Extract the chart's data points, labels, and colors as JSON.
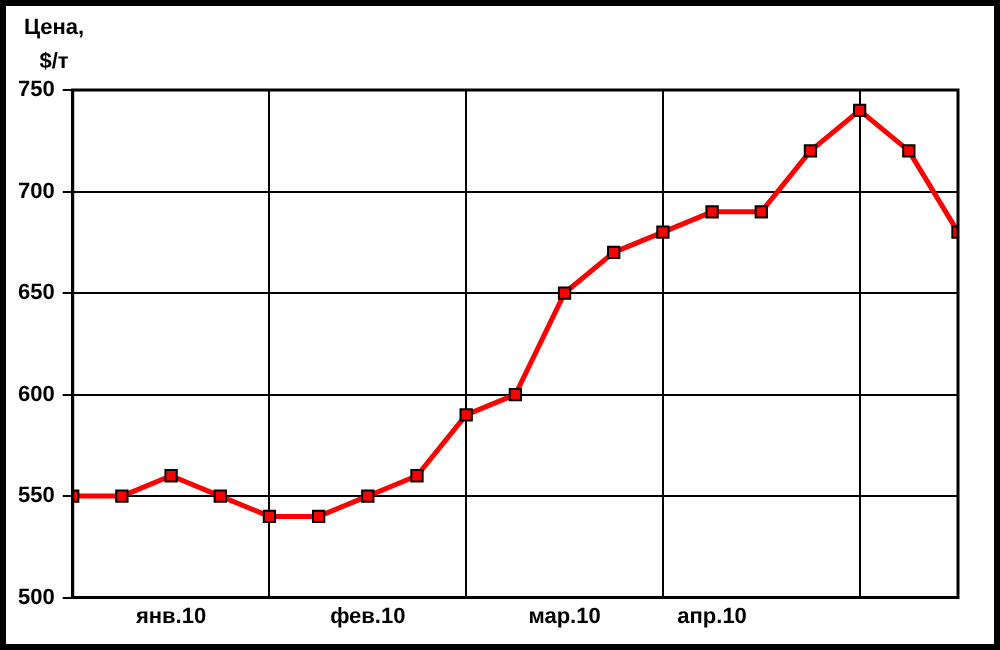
{
  "chart_data": {
    "type": "line",
    "ylabel": "Цена, $/т",
    "categories": [
      null,
      null,
      "янв.10",
      null,
      null,
      null,
      "фев.10",
      null,
      null,
      null,
      "мар.10",
      null,
      null,
      "апр.10",
      null,
      null,
      null,
      null,
      null
    ],
    "series": [
      {
        "color": "#ff0000",
        "values": [
          550,
          550,
          560,
          550,
          540,
          540,
          550,
          560,
          590,
          600,
          650,
          670,
          680,
          690,
          690,
          720,
          740,
          720,
          680
        ]
      }
    ],
    "ylim": [
      500,
      750
    ],
    "yticks": [
      500,
      550,
      600,
      650,
      700,
      750
    ],
    "grid": true,
    "legend": false,
    "marker": "square",
    "line_style": "solid"
  }
}
